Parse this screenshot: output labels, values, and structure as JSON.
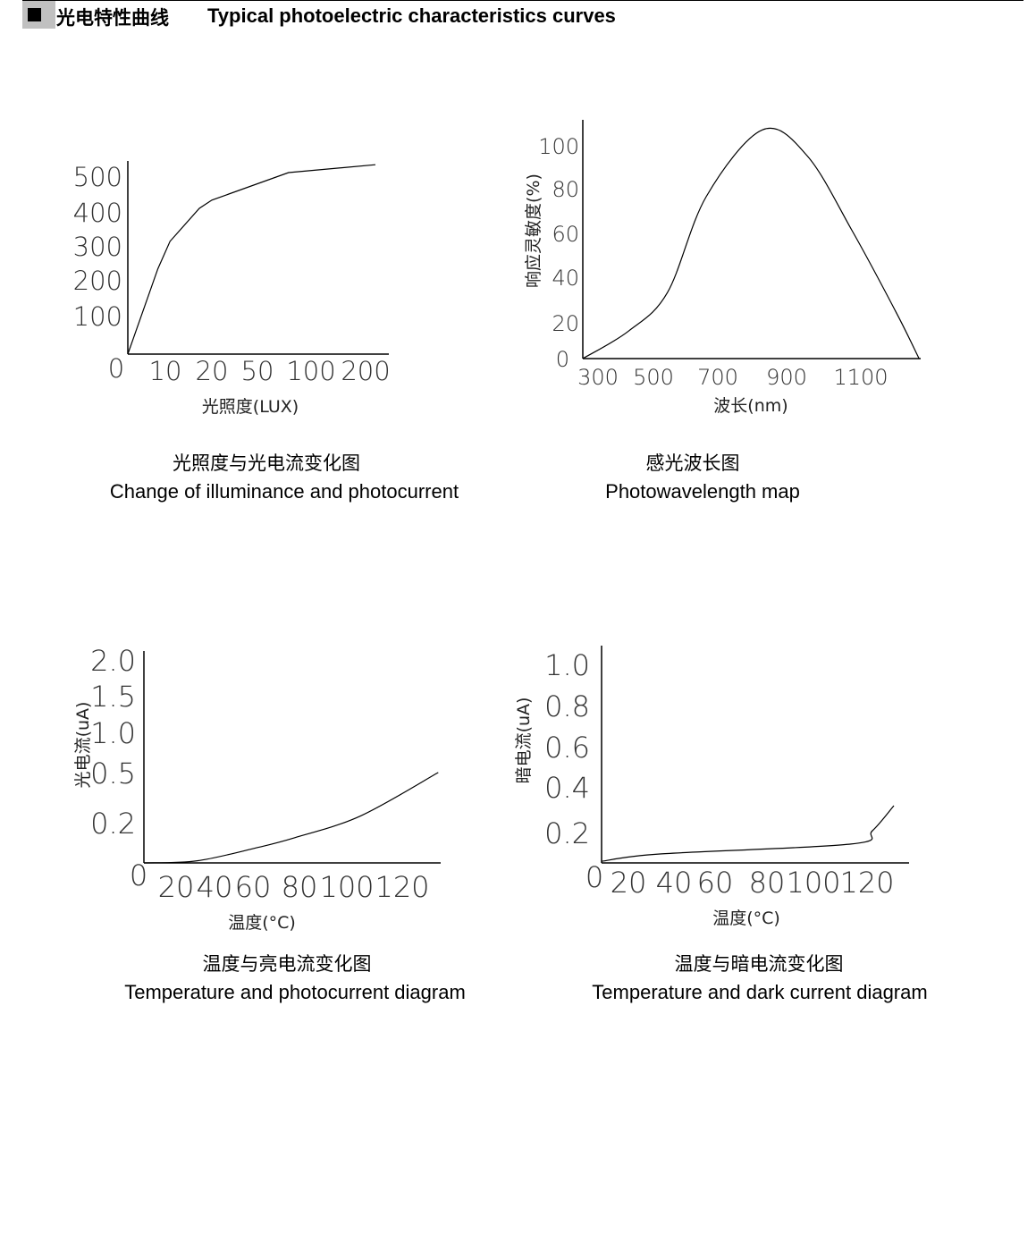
{
  "header": {
    "marker_icon": "black-square-icon",
    "title_zh": "光电特性曲线",
    "title_en": "Typical photoelectric characteristics curves"
  },
  "chart_data": [
    {
      "type": "line",
      "title": "光照度与光电流变化图",
      "subtitle": "Change of illuminance and photocurrent",
      "xlabel": "光照度(LUX)",
      "ylabel": "",
      "xticks": [
        {
          "label": "0",
          "value": 0
        },
        {
          "label": "10",
          "value": 10
        },
        {
          "label": "20",
          "value": 20
        },
        {
          "label": "50",
          "value": 50
        },
        {
          "label": "100",
          "value": 100
        },
        {
          "label": "200",
          "value": 200
        }
      ],
      "yticks": [
        {
          "label": "100",
          "value": 100
        },
        {
          "label": "200",
          "value": 200
        },
        {
          "label": "300",
          "value": 300
        },
        {
          "label": "400",
          "value": 400
        },
        {
          "label": "500",
          "value": 500
        }
      ],
      "x_scale": "nonlinear (uneven tick spacing)",
      "grid": false,
      "series": [
        {
          "points": [
            [
              0,
              0
            ],
            [
              8,
              230
            ],
            [
              11,
              311
            ],
            [
              17.3,
              410
            ],
            [
              20,
              433
            ],
            [
              79,
              510
            ],
            [
              218,
              532
            ]
          ]
        }
      ]
    },
    {
      "type": "line",
      "title": "感光波长图",
      "subtitle": "Photowavelength map",
      "xlabel": "波长(nm)",
      "ylabel": "响应灵敏度(%)",
      "xticks": [
        {
          "label": "300",
          "value": 300
        },
        {
          "label": "500",
          "value": 500
        },
        {
          "label": "700",
          "value": 700
        },
        {
          "label": "900",
          "value": 900
        },
        {
          "label": "1100",
          "value": 1100
        }
      ],
      "yticks": [
        {
          "label": "0",
          "value": 0
        },
        {
          "label": "20",
          "value": 20
        },
        {
          "label": "40",
          "value": 40
        },
        {
          "label": "60",
          "value": 60
        },
        {
          "label": "80",
          "value": 80
        },
        {
          "label": "100",
          "value": 100
        }
      ],
      "grid": false,
      "series": [
        {
          "points": [
            [
              245,
              0
            ],
            [
              410,
              15
            ],
            [
              544,
              33
            ],
            [
              664,
              76
            ],
            [
              830,
              107
            ],
            [
              955,
              95
            ],
            [
              1076,
              61
            ],
            [
              1196,
              24
            ],
            [
              1257,
              0
            ]
          ]
        }
      ]
    },
    {
      "type": "line",
      "title": "温度与亮电流变化图",
      "subtitle": "Temperature and photocurrent diagram",
      "xlabel": "温度(°C)",
      "ylabel": "光电流(uA)",
      "xticks": [
        {
          "label": "0",
          "value": 0
        },
        {
          "label": "20",
          "value": 20
        },
        {
          "label": "40",
          "value": 40
        },
        {
          "label": "60",
          "value": 60
        },
        {
          "label": "80",
          "value": 80
        },
        {
          "label": "100",
          "value": 100
        },
        {
          "label": "120",
          "value": 120
        }
      ],
      "yticks": [
        {
          "label": "0.2",
          "value": 0.2
        },
        {
          "label": "0.5",
          "value": 0.5
        },
        {
          "label": "1.0",
          "value": 1.0
        },
        {
          "label": "1.5",
          "value": 1.5
        },
        {
          "label": "2.0",
          "value": 2.0
        }
      ],
      "y_scale": "nonlinear (uneven tick spacing)",
      "grid": false,
      "series": [
        {
          "points": [
            [
              0,
              0
            ],
            [
              31,
              0.01
            ],
            [
              61.5,
              0.072
            ],
            [
              78,
              0.12
            ],
            [
              105,
              0.23
            ],
            [
              133,
              0.49
            ]
          ]
        }
      ]
    },
    {
      "type": "line",
      "title": "温度与暗电流变化图",
      "subtitle": "Temperature and dark current diagram",
      "xlabel": "温度(°C)",
      "ylabel": "暗电流(uA)",
      "xticks": [
        {
          "label": "0",
          "value": 0
        },
        {
          "label": "20",
          "value": 20
        },
        {
          "label": "40",
          "value": 40
        },
        {
          "label": "60",
          "value": 60
        },
        {
          "label": "80",
          "value": 80
        },
        {
          "label": "100",
          "value": 100
        },
        {
          "label": "120",
          "value": 120
        }
      ],
      "yticks": [
        {
          "label": "0.2",
          "value": 0.2
        },
        {
          "label": "0.4",
          "value": 0.4
        },
        {
          "label": "0.6",
          "value": 0.6
        },
        {
          "label": "0.8",
          "value": 0.8
        },
        {
          "label": "1.0",
          "value": 1.0
        }
      ],
      "grid": false,
      "series": [
        {
          "points": [
            [
              0,
              0.01
            ],
            [
              34.5,
              0.056
            ],
            [
              114,
              0.117
            ],
            [
              122,
              0.2
            ],
            [
              130,
              0.31
            ]
          ]
        }
      ]
    }
  ]
}
